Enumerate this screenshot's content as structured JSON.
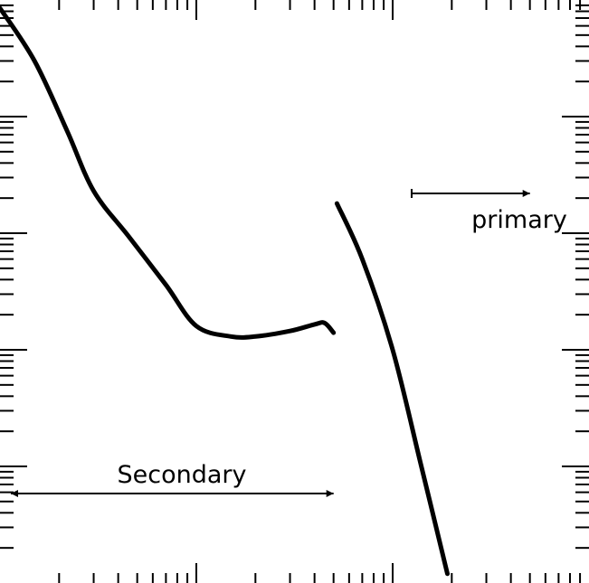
{
  "chart_data": {
    "type": "line",
    "title": "",
    "xlabel": "",
    "ylabel": "",
    "x_scale": "log",
    "y_scale": "log",
    "grid": false,
    "legend": "none",
    "axis_tick_labels": "none",
    "annotations": [
      {
        "text": "Secondary",
        "type": "range-arrow",
        "direction": "both",
        "x_range": [
          0.01,
          0.5
        ]
      },
      {
        "text": "primary",
        "type": "range-arrow",
        "direction": "right",
        "x_range": [
          1.1,
          5
        ]
      }
    ],
    "series": [
      {
        "region": "secondary",
        "x": [
          0.01,
          0.015,
          0.022,
          0.03,
          0.045,
          0.07,
          0.1,
          0.15,
          0.2,
          0.3,
          0.4,
          0.45,
          0.5
        ],
        "y": [
          85,
          30,
          7.5,
          2.3,
          0.95,
          0.36,
          0.16,
          0.13,
          0.13,
          0.145,
          0.165,
          0.17,
          0.14
        ]
      },
      {
        "region": "primary",
        "x": [
          0.52,
          0.7,
          1.0,
          1.4,
          1.9
        ],
        "y": [
          1.8,
          0.6,
          0.1,
          0.01,
          0.0012
        ]
      }
    ],
    "colors": {
      "line": "#000000",
      "background": "#ffffff"
    }
  }
}
